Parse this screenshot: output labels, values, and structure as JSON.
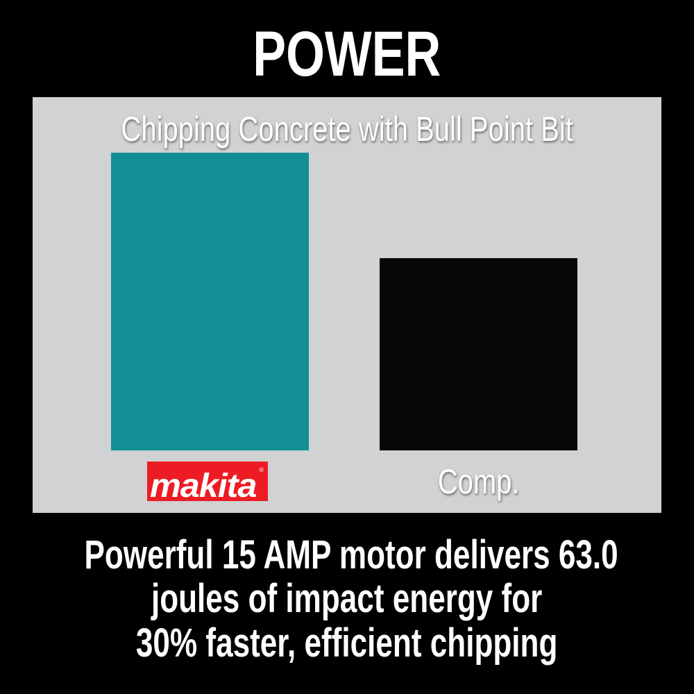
{
  "title": "POWER",
  "chart_data": {
    "type": "bar",
    "title": "Chipping Concrete with Bull Point Bit",
    "categories": [
      "Makita",
      "Comp."
    ],
    "values": [
      1.0,
      0.645
    ],
    "value_unit": "relative (no axis printed)",
    "colors": [
      "#138e97",
      "#050708"
    ],
    "grid": false,
    "legend": "none"
  },
  "logo": {
    "text": "makita",
    "color": "#ed1c24"
  },
  "comp_label": "Comp.",
  "footer": {
    "lines": [
      "Powerful 15 AMP motor delivers 63.0",
      "joules of impact energy for",
      "30% faster, efficient chipping"
    ]
  },
  "colors": {
    "background": "#000000",
    "panel": "#d1d2d4",
    "text": "#ffffff"
  }
}
